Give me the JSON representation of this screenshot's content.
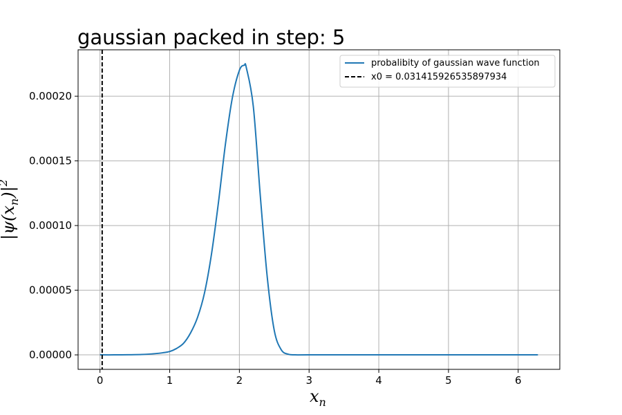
{
  "chart_data": {
    "type": "line",
    "title": "gaussian packed in step: 5",
    "xlabel": "x_n",
    "ylabel": "|ψ(x_n)|²",
    "xlim": [
      -0.314,
      6.597
    ],
    "ylim": [
      -1.12e-05,
      0.0002359
    ],
    "x_ticks": [
      0,
      1,
      2,
      3,
      4,
      5,
      6
    ],
    "x_tick_labels": [
      "0",
      "1",
      "2",
      "3",
      "4",
      "5",
      "6"
    ],
    "y_ticks": [
      0,
      5e-05,
      0.0001,
      0.00015,
      0.0002
    ],
    "y_tick_labels": [
      "0.00000",
      "0.00005",
      "0.00010",
      "0.00015",
      "0.00020"
    ],
    "grid": true,
    "legend_position": "top-right",
    "series": [
      {
        "name": "probalibity of gaussian wave function",
        "color": "#1f77b4",
        "style": "solid",
        "x": [
          0.0,
          0.2,
          0.4,
          0.6,
          0.8,
          0.9,
          1.0,
          1.1,
          1.2,
          1.3,
          1.4,
          1.5,
          1.6,
          1.7,
          1.8,
          1.9,
          2.0,
          2.07,
          2.1,
          2.2,
          2.3,
          2.4,
          2.5,
          2.6,
          2.7,
          2.8,
          3.0,
          4.0,
          5.0,
          6.283
        ],
        "y": [
          0.0,
          0.0,
          1e-07,
          3e-07,
          1e-06,
          1.6e-06,
          2.6e-06,
          5e-06,
          9e-06,
          1.7e-05,
          2.9e-05,
          4.8e-05,
          7.8e-05,
          0.000118,
          0.000163,
          0.000199,
          0.00022,
          0.000224,
          0.000222,
          0.000192,
          0.000123,
          6e-05,
          1.9e-05,
          4e-06,
          5e-07,
          0.0,
          0.0,
          0.0,
          0.0,
          0.0
        ]
      },
      {
        "name": "x0 = 0.031415926535897934",
        "color": "#000000",
        "style": "dashed",
        "vline_x": 0.031415926535897934
      }
    ]
  }
}
